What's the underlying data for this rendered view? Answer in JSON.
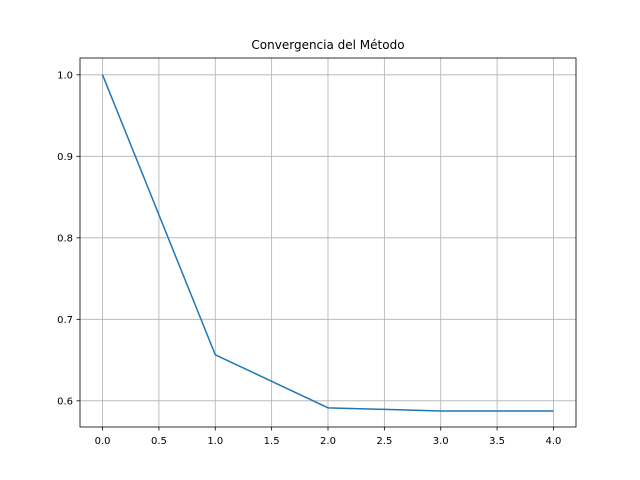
{
  "chart_data": {
    "type": "line",
    "title": "Convergencia del Método",
    "xlabel": "",
    "ylabel": "",
    "x": [
      0,
      1,
      2,
      3,
      4
    ],
    "series": [
      {
        "values": [
          1.0,
          0.6565,
          0.5914,
          0.5876,
          0.5876
        ]
      }
    ],
    "xlim": [
      -0.2,
      4.2
    ],
    "ylim": [
      0.5679,
      1.0206
    ],
    "xticks": [
      "0.0",
      "0.5",
      "1.0",
      "1.5",
      "2.0",
      "2.5",
      "3.0",
      "3.5",
      "4.0"
    ],
    "yticks": [
      "0.6",
      "0.7",
      "0.8",
      "0.9",
      "1.0"
    ],
    "grid": true,
    "colors": {
      "line": "#1f77b4",
      "grid": "#b0b0b0",
      "axes": "#000000"
    }
  }
}
